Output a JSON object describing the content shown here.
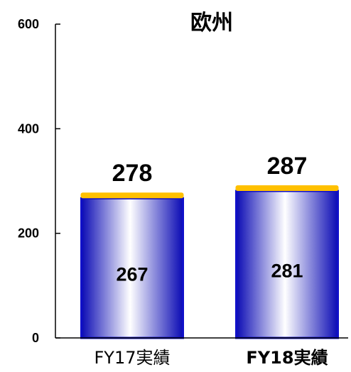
{
  "chart_data": {
    "type": "bar",
    "title": "欧州",
    "categories": [
      "FY17実績",
      "FY18実績"
    ],
    "series": [
      {
        "values": [
          267,
          281
        ],
        "color": "#1010c8"
      },
      {
        "values": [
          11,
          6
        ],
        "color": "#ffc000"
      }
    ],
    "totals": [
      278,
      287
    ],
    "ylim": [
      0,
      600
    ],
    "yticks": [
      "0",
      "200",
      "400",
      "600"
    ],
    "xlabel": "",
    "ylabel": "",
    "grid": false,
    "legend": "none"
  }
}
